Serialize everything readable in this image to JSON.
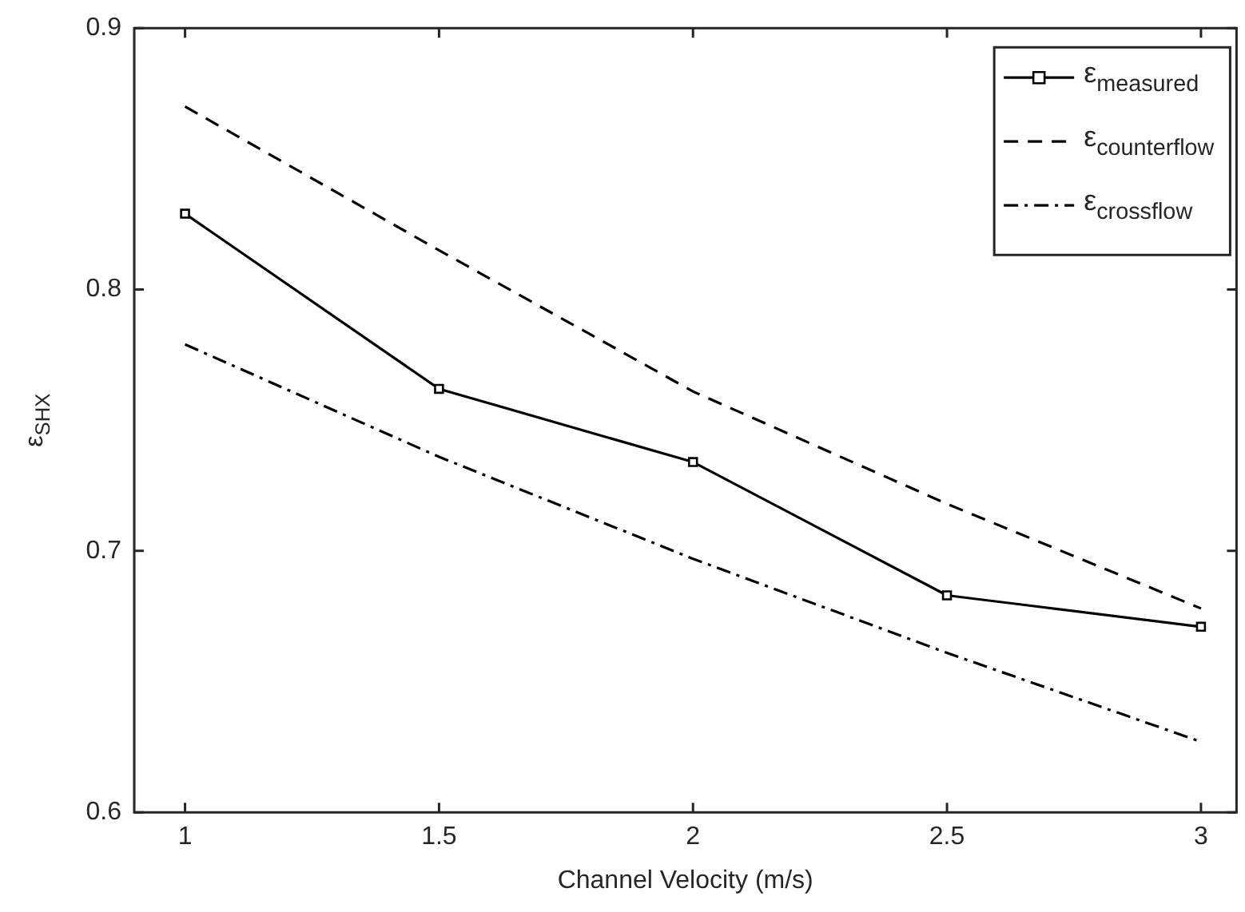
{
  "chart_data": {
    "type": "line",
    "xlabel": "Channel Velocity (m/s)",
    "ylabel": "ε$_{SHX}$",
    "x": [
      1,
      1.5,
      2,
      2.5,
      3
    ],
    "xlim": [
      0.9,
      3.07
    ],
    "xticks": [
      1,
      1.5,
      2,
      2.5,
      3
    ],
    "ylim": [
      0.6,
      0.9
    ],
    "yticks": [
      0.6,
      0.7,
      0.8,
      0.9
    ],
    "grid": false,
    "legend": "top right",
    "series": [
      {
        "name": "ε$_{measured}$",
        "color": "#000000",
        "marker": "square",
        "line_style": "solid",
        "values": [
          0.829,
          0.762,
          0.734,
          0.683,
          0.671
        ]
      },
      {
        "name": "ε$_{counterflow}$",
        "color": "#000000",
        "marker": "none",
        "line_style": "dashed",
        "values": [
          0.87,
          0.815,
          0.761,
          0.718,
          0.678
        ]
      },
      {
        "name": "ε$_{crossflow}$",
        "color": "#000000",
        "marker": "none",
        "line_style": "dashdot",
        "values": [
          0.779,
          0.736,
          0.697,
          0.661,
          0.627
        ]
      }
    ]
  }
}
